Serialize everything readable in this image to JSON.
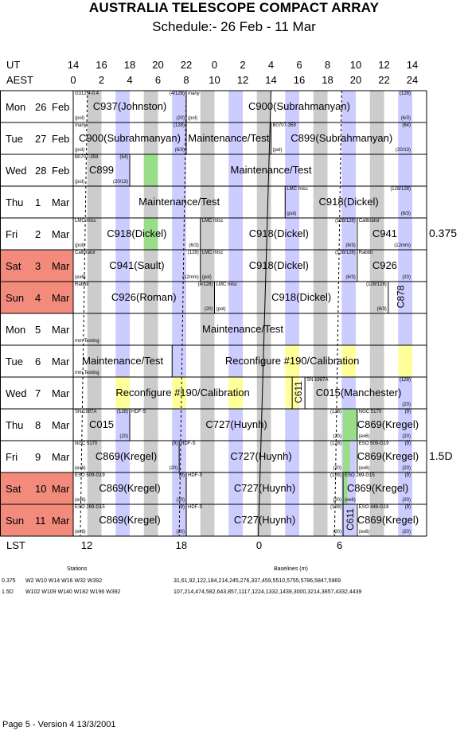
{
  "header": {
    "title": "AUSTRALIA TELESCOPE COMPACT ARRAY",
    "subtitle": "Schedule:- 26 Feb - 11 Mar"
  },
  "axis": {
    "ut_label": "UT",
    "aest_label": "AEST",
    "lst_label": "LST",
    "ut_ticks": [
      "14",
      "16",
      "18",
      "20",
      "22",
      "0",
      "2",
      "4",
      "6",
      "8",
      "10",
      "12",
      "14"
    ],
    "aest_ticks": [
      "0",
      "2",
      "4",
      "6",
      "8",
      "10",
      "12",
      "14",
      "16",
      "18",
      "20",
      "22",
      "24"
    ],
    "lst_ticks": [
      "12",
      "18",
      "0",
      "6"
    ]
  },
  "days": [
    {
      "dow": "Mon",
      "num": "26",
      "mon": "Feb",
      "weekend": false
    },
    {
      "dow": "Tue",
      "num": "27",
      "mon": "Feb",
      "weekend": false
    },
    {
      "dow": "Wed",
      "num": "28",
      "mon": "Feb",
      "weekend": false
    },
    {
      "dow": "Thu",
      "num": "1",
      "mon": "Mar",
      "weekend": false
    },
    {
      "dow": "Fri",
      "num": "2",
      "mon": "Mar",
      "weekend": false
    },
    {
      "dow": "Sat",
      "num": "3",
      "mon": "Mar",
      "weekend": true
    },
    {
      "dow": "Sun",
      "num": "4",
      "mon": "Mar",
      "weekend": true
    },
    {
      "dow": "Mon",
      "num": "5",
      "mon": "Mar",
      "weekend": false
    },
    {
      "dow": "Tue",
      "num": "6",
      "mon": "Mar",
      "weekend": false
    },
    {
      "dow": "Wed",
      "num": "7",
      "mon": "Mar",
      "weekend": false
    },
    {
      "dow": "Thu",
      "num": "8",
      "mon": "Mar",
      "weekend": false
    },
    {
      "dow": "Fri",
      "num": "9",
      "mon": "Mar",
      "weekend": false
    },
    {
      "dow": "Sat",
      "num": "10",
      "mon": "Mar",
      "weekend": true
    },
    {
      "dow": "Sun",
      "num": "11",
      "mon": "Mar",
      "weekend": true
    }
  ],
  "blocks": [
    [
      {
        "s": 0,
        "e": 8,
        "name": "C937(Johnston)",
        "tl": "G312.4-0.4",
        "tr": "(4/128)",
        "bl": "(pol)",
        "br": "(20)"
      },
      {
        "s": 8,
        "e": 24,
        "name": "C900(Subrahmanyan)",
        "tl": "many",
        "tr": "(128)",
        "bl": "(pol)",
        "br": "(6/3)"
      }
    ],
    [
      {
        "s": 0,
        "e": 8,
        "name": "C900(Subrahmanyan)",
        "tl": "many",
        "tr": "(128)",
        "bl": "(pol)",
        "br": "(6/3)"
      },
      {
        "s": 8,
        "e": 14,
        "name": "Maintenance/Test"
      },
      {
        "s": 14,
        "e": 24,
        "name": "C899(Subrahmanyan)",
        "tl": "B0707-359",
        "tr": "(64)",
        "bl": "(pol)",
        "br": "(20/13)"
      }
    ],
    [
      {
        "s": 0,
        "e": 4,
        "name": "C899",
        "tl": "B0707-359",
        "tr": "(64)",
        "bl": "(pol)",
        "br": "(20/13)"
      },
      {
        "s": 4,
        "e": 24,
        "name": "Maintenance/Test"
      }
    ],
    [
      {
        "s": 0,
        "e": 15,
        "name": "Maintenance/Test"
      },
      {
        "s": 15,
        "e": 24,
        "name": "C918(Dickel)",
        "tl": "LMC misc",
        "tr": "(128/128)",
        "bl": "(pol)",
        "br": "(6/3)"
      }
    ],
    [
      {
        "s": 0,
        "e": 9,
        "name": "C918(Dickel)",
        "tl": "LMC misc",
        "bl": "(pol)",
        "br": "(6/3)"
      },
      {
        "s": 9,
        "e": 20.1,
        "name": "C918(Dickel)",
        "tl": "LMC misc",
        "tr": "(128/128)",
        "br": "(6/3)"
      },
      {
        "s": 20.1,
        "e": 24,
        "name": "C941",
        "tl": "Calibrator",
        "br": "(12mm)"
      }
    ],
    [
      {
        "s": 0,
        "e": 9,
        "name": "C941(Sault)",
        "tl": "Calibrator",
        "tr": "(128)",
        "bl": "(ex6)",
        "br": "(12mm)"
      },
      {
        "s": 9,
        "e": 20.1,
        "name": "C918(Dickel)",
        "tl": "LMC misc",
        "tr": "(128/128)",
        "bl": "(pol)",
        "br": "(6/3)"
      },
      {
        "s": 20.1,
        "e": 24,
        "name": "C926",
        "tl": "Rabbit",
        "br": "(20)"
      }
    ],
    [
      {
        "s": 0,
        "e": 10,
        "name": "C926(Roman)",
        "tl": "Rabbit",
        "tr": "(4/128)",
        "br": "(20)"
      },
      {
        "s": 10,
        "e": 22.3,
        "name": "C918(Dickel)",
        "tl": "LMC misc",
        "tr": "(128/128)",
        "bl": "(pol)",
        "br": "(6/3)"
      },
      {
        "s": 22.3,
        "e": 24,
        "vert": "C878"
      }
    ],
    [
      {
        "s": 0,
        "e": 24,
        "name": "Maintenance/Test",
        "bl": "mm Testing"
      }
    ],
    [
      {
        "s": 0,
        "e": 7,
        "name": "Maintenance/Test",
        "bl": "mm Testing"
      },
      {
        "s": 7,
        "e": 24,
        "name": "Reconfigure #190/Calibration"
      }
    ],
    [
      {
        "s": 0,
        "e": 15.5,
        "name": "Reconfigure #190/Calibration"
      },
      {
        "s": 15.5,
        "e": 16.4,
        "vert": "C611"
      },
      {
        "s": 16.4,
        "e": 24,
        "name": "C015(Manchester)",
        "tl": "SN 1987A",
        "tr": "(128)",
        "br": "(20)"
      }
    ],
    [
      {
        "s": 0,
        "e": 4,
        "name": "C015",
        "tl": "SN 1987A",
        "tr": "(128)",
        "br": "(20)"
      },
      {
        "s": 4,
        "e": 19.1,
        "name": "C727(Huynh)",
        "tl": "HDF-S",
        "tr": "(128)",
        "br": "(20)"
      },
      {
        "s": 20.1,
        "e": 24,
        "name": "C869(Kregel)",
        "tl": "NGC 5170",
        "tr": "(9)",
        "bl": "(ex6)",
        "br": "(20)"
      }
    ],
    [
      {
        "s": 0,
        "e": 7.5,
        "name": "C869(Kregel)",
        "tl": "NGC 5170",
        "tr": "(9)",
        "bl": "(ex6)",
        "br": "(20)"
      },
      {
        "s": 7.5,
        "e": 19.1,
        "name": "C727(Huynh)",
        "tl": "HDF-S",
        "tr": "(128)",
        "br": "(20)"
      },
      {
        "s": 20.1,
        "e": 24,
        "name": "C869(Kregel)",
        "tl": "ESO 509-G19",
        "tr": "(9)",
        "bl": "(ex6)",
        "br": "(20)"
      }
    ],
    [
      {
        "s": 0,
        "e": 8,
        "name": "C869(Kregel)",
        "tl": "ESO 509-G19",
        "tr": "(9)",
        "bl": "(ex6)",
        "br": "(20)"
      },
      {
        "s": 8,
        "e": 19.1,
        "name": "C727(Huynh)",
        "tl": "HDF-S",
        "tr": "(128)",
        "br": "(20)"
      },
      {
        "s": 19.1,
        "e": 24,
        "name": "C869(Kregel)",
        "tl": "ESO 269-G15",
        "tr": "(9)",
        "bl": "(ex6)",
        "br": "(20)"
      }
    ],
    [
      {
        "s": 0,
        "e": 8,
        "name": "C869(Kregel)",
        "tl": "ESO 269-G15",
        "tr": "(9)",
        "bl": "(ex6)",
        "br": "(20)"
      },
      {
        "s": 8,
        "e": 19.1,
        "name": "C727(Huynh)",
        "tl": "HDF-S",
        "tr": "(128)",
        "br": "(20)"
      },
      {
        "s": 19.1,
        "e": 20.1,
        "vert": "C611"
      },
      {
        "s": 20.1,
        "e": 24,
        "name": "C869(Kregel)",
        "tl": "ESO 446-G18",
        "tr": "(9)",
        "bl": "(ex6)",
        "br": "(20)"
      }
    ]
  ],
  "configs": [
    {
      "label": "0.375",
      "row": 4
    },
    {
      "label": "1.5D",
      "row": 11
    }
  ],
  "footer": {
    "stations_hdr": "Stations",
    "baselines_hdr": "Baselines (m)",
    "rows": [
      {
        "cfg": "0.375",
        "stations": "W2 W10 W14 W16 W32 W392",
        "baselines": "31,61,92,122,184,214,245,276,337,459,5510,5755,5786,5847,5969"
      },
      {
        "cfg": "1.5D",
        "stations": "W102 W109 W140 W182 W196 W392",
        "baselines": "107,214,474,582,643,857,1117,1224,1332,1439,3000,3214,3857,4332,4439"
      }
    ],
    "version": "Page 5 - Version 4  13/3/2001"
  },
  "colors": {
    "weekend": "#f28b7c",
    "night_grey": "#cccccc",
    "blue": "#ccccff",
    "yellow": "#ffff99",
    "green": "#99dd88"
  }
}
